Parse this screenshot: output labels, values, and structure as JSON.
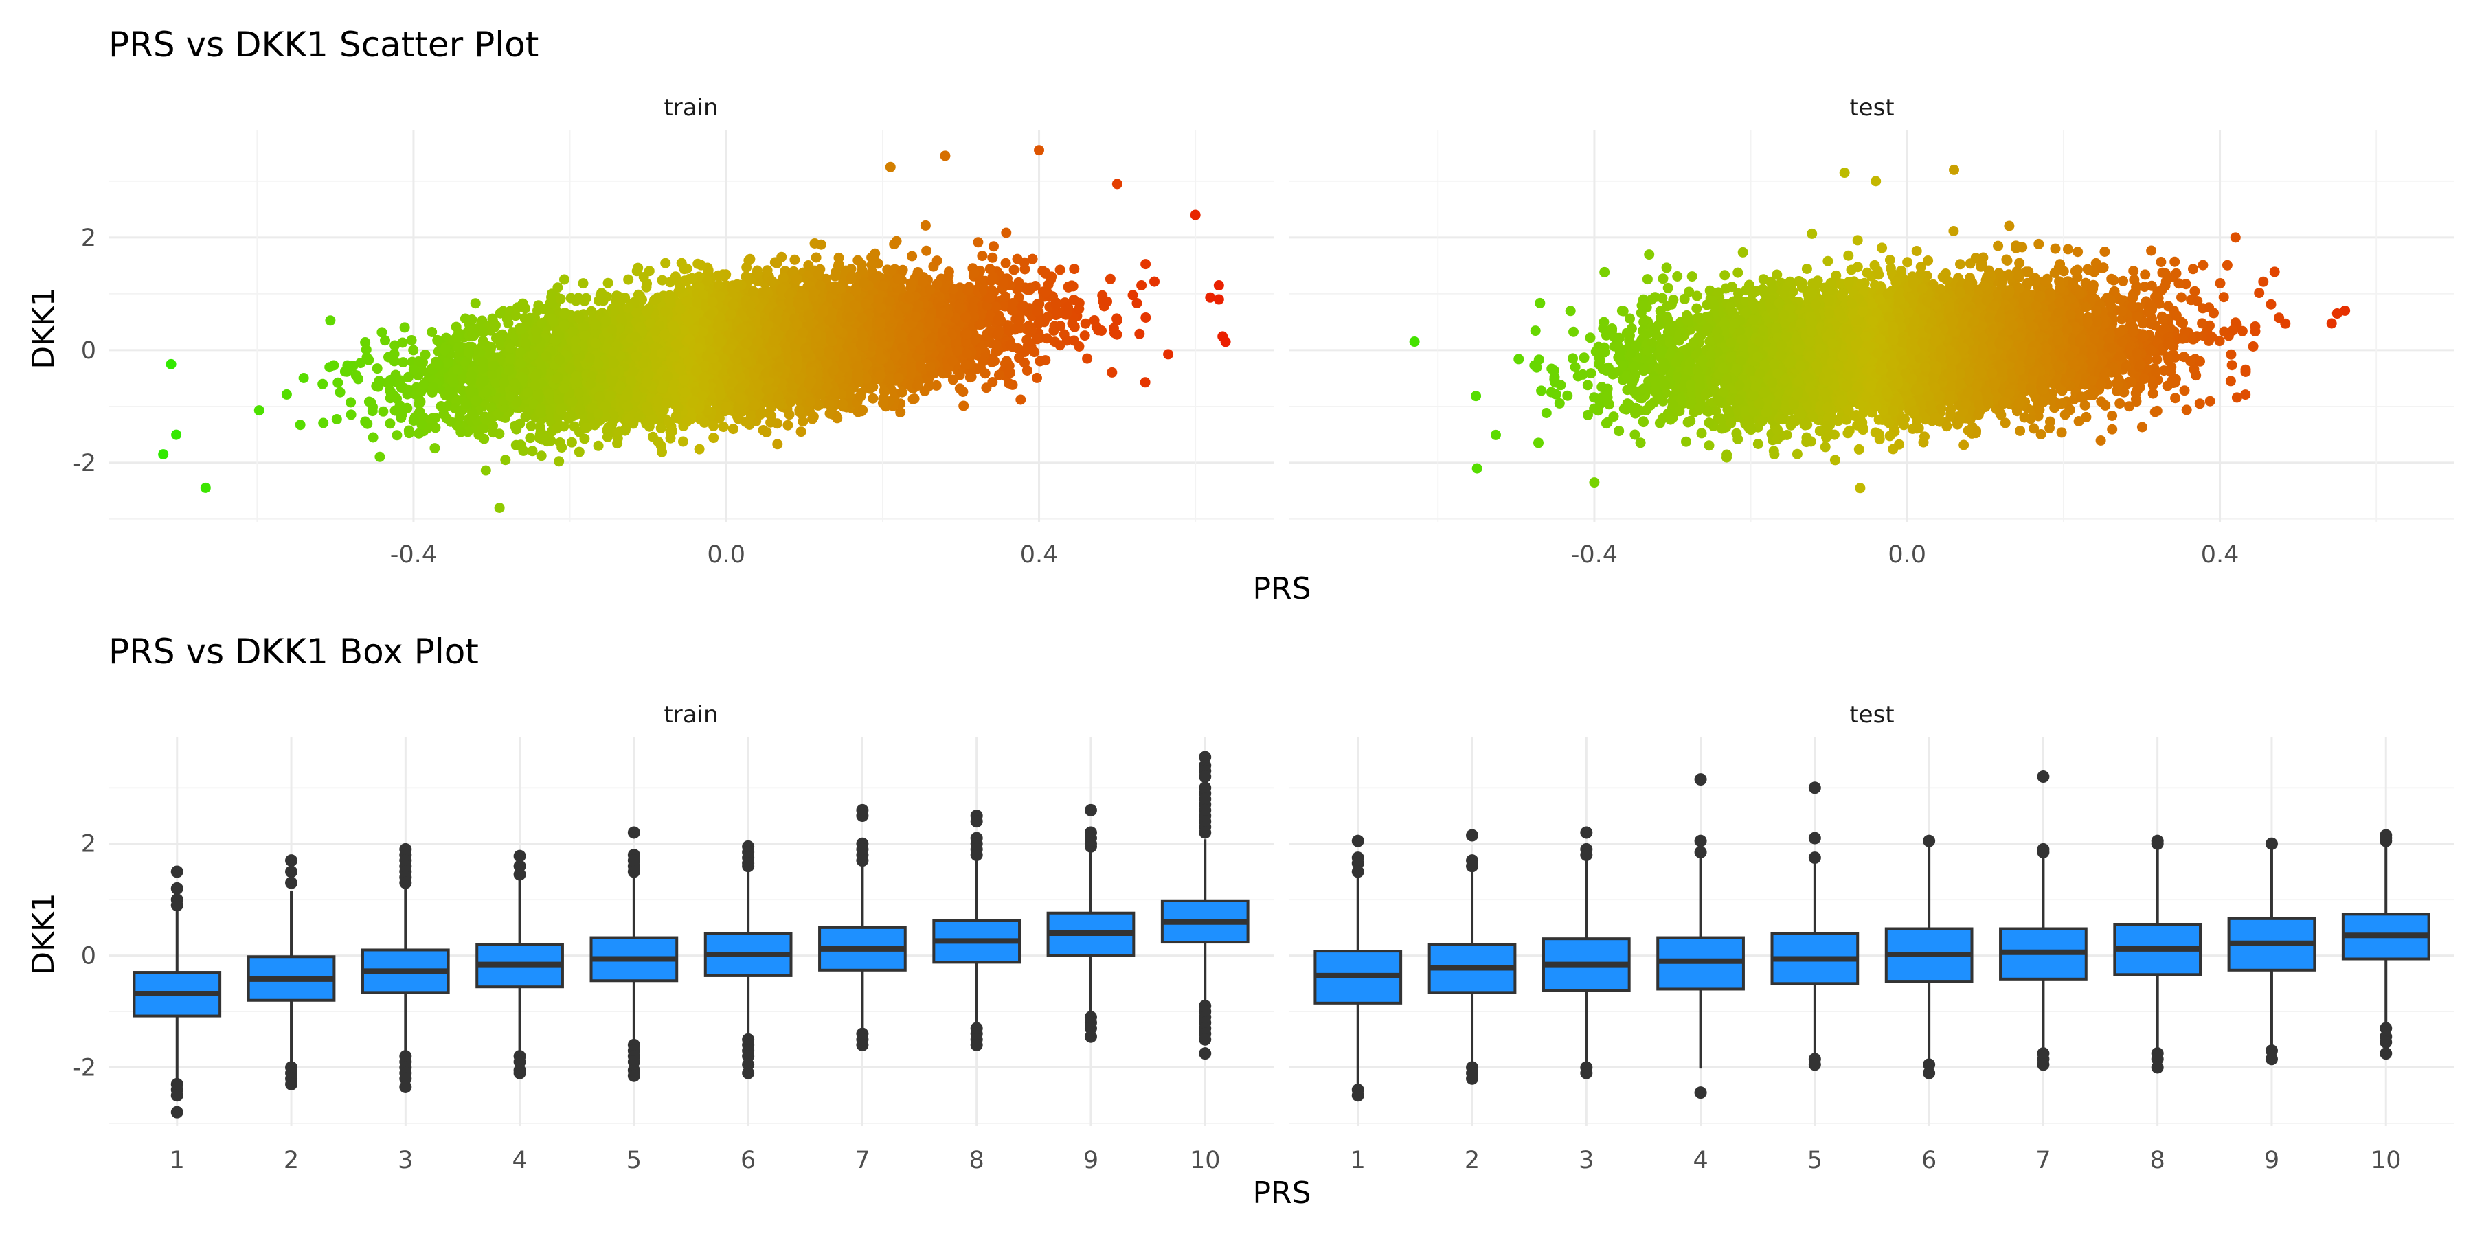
{
  "chart_data": [
    {
      "type": "scatter",
      "title": "PRS vs DKK1 Scatter Plot",
      "xlabel": "PRS",
      "ylabel": "DKK1",
      "facets": [
        "train",
        "test"
      ],
      "xlim": [
        -0.79,
        0.7
      ],
      "ylim": [
        -3.05,
        3.9
      ],
      "x_ticks": [
        -0.4,
        0.0,
        0.4
      ],
      "x_tick_labels": [
        "-0.4",
        "0.0",
        "0.4"
      ],
      "y_ticks": [
        -2,
        0,
        2
      ],
      "y_tick_labels": [
        "-2",
        "0",
        "2"
      ],
      "grid": true,
      "color_scale": {
        "low": "#22ee00",
        "mid": "#c4b800",
        "high": "#ee1100",
        "mapped_to": "PRS"
      },
      "approx_trend": {
        "train": {
          "slope": 2.7,
          "sd": 0.52,
          "x_center": 0.0,
          "x_sd": 0.17
        },
        "test": {
          "slope": 1.2,
          "sd": 0.55,
          "x_center": -0.02,
          "x_sd": 0.15
        }
      },
      "notable_points": {
        "train": [
          [
            0.4,
            3.55
          ],
          [
            0.28,
            3.45
          ],
          [
            0.21,
            3.25
          ],
          [
            0.63,
            1.15
          ],
          [
            0.63,
            0.9
          ],
          [
            -0.71,
            -0.25
          ],
          [
            -0.72,
            -1.85
          ],
          [
            -0.29,
            -2.8
          ],
          [
            0.6,
            2.4
          ],
          [
            0.5,
            2.95
          ]
        ],
        "test": [
          [
            -0.08,
            3.15
          ],
          [
            0.06,
            3.2
          ],
          [
            -0.04,
            3.0
          ],
          [
            0.56,
            0.7
          ],
          [
            0.55,
            0.65
          ],
          [
            -0.63,
            0.15
          ],
          [
            -0.55,
            -2.1
          ],
          [
            -0.4,
            -2.35
          ],
          [
            -0.06,
            -2.45
          ],
          [
            0.42,
            2.0
          ]
        ]
      }
    },
    {
      "type": "box",
      "title": "PRS vs DKK1 Box Plot",
      "xlabel": "PRS",
      "ylabel": "DKK1",
      "facets": [
        "train",
        "test"
      ],
      "categories": [
        "1",
        "2",
        "3",
        "4",
        "5",
        "6",
        "7",
        "8",
        "9",
        "10"
      ],
      "ylim": [
        -3.05,
        3.9
      ],
      "y_ticks": [
        -2,
        0,
        2
      ],
      "y_tick_labels": [
        "-2",
        "0",
        "2"
      ],
      "box_fill": "#1e90ff",
      "grid": true,
      "series": [
        {
          "facet": "train",
          "boxes": [
            {
              "q1": -1.08,
              "median": -0.68,
              "q3": -0.3,
              "whisker_low": -2.2,
              "whisker_high": 0.85,
              "outliers": [
                1.5,
                1.2,
                1.0,
                0.9,
                -2.3,
                -2.4,
                -2.5,
                -2.8
              ]
            },
            {
              "q1": -0.8,
              "median": -0.42,
              "q3": -0.02,
              "whisker_low": -1.9,
              "whisker_high": 1.15,
              "outliers": [
                1.7,
                1.5,
                1.3,
                -2.0,
                -2.1,
                -2.2,
                -2.3
              ]
            },
            {
              "q1": -0.66,
              "median": -0.28,
              "q3": 0.1,
              "whisker_low": -1.78,
              "whisker_high": 1.22,
              "outliers": [
                1.9,
                1.8,
                1.7,
                1.6,
                1.5,
                1.4,
                1.3,
                -1.8,
                -1.9,
                -2.0,
                -2.1,
                -2.2,
                -2.35
              ]
            },
            {
              "q1": -0.56,
              "median": -0.16,
              "q3": 0.2,
              "whisker_low": -1.72,
              "whisker_high": 1.35,
              "outliers": [
                1.78,
                1.6,
                1.45,
                -1.8,
                -1.9,
                -2.05,
                -2.1
              ]
            },
            {
              "q1": -0.45,
              "median": -0.06,
              "q3": 0.32,
              "whisker_low": -1.55,
              "whisker_high": 1.45,
              "outliers": [
                2.2,
                1.8,
                1.7,
                1.6,
                1.5,
                -1.6,
                -1.7,
                -1.8,
                -1.9,
                -2.05,
                -2.15
              ]
            },
            {
              "q1": -0.36,
              "median": 0.02,
              "q3": 0.4,
              "whisker_low": -1.48,
              "whisker_high": 1.5,
              "outliers": [
                1.95,
                1.85,
                1.75,
                1.65,
                1.6,
                -1.5,
                -1.6,
                -1.7,
                -1.8,
                -1.95,
                -2.1
              ]
            },
            {
              "q1": -0.26,
              "median": 0.12,
              "q3": 0.5,
              "whisker_low": -1.38,
              "whisker_high": 1.6,
              "outliers": [
                2.6,
                2.5,
                2.0,
                1.9,
                1.8,
                1.7,
                -1.4,
                -1.5,
                -1.6
              ]
            },
            {
              "q1": -0.12,
              "median": 0.26,
              "q3": 0.63,
              "whisker_low": -1.22,
              "whisker_high": 1.72,
              "outliers": [
                2.5,
                2.4,
                2.1,
                2.0,
                1.9,
                1.8,
                -1.3,
                -1.4,
                -1.5,
                -1.6
              ]
            },
            {
              "q1": 0.0,
              "median": 0.4,
              "q3": 0.76,
              "whisker_low": -1.05,
              "whisker_high": 1.85,
              "outliers": [
                2.6,
                2.2,
                2.1,
                2.0,
                1.95,
                -1.1,
                -1.2,
                -1.3,
                -1.45
              ]
            },
            {
              "q1": 0.24,
              "median": 0.6,
              "q3": 0.98,
              "whisker_low": -0.85,
              "whisker_high": 2.08,
              "outliers": [
                3.55,
                3.4,
                3.3,
                3.2,
                3.0,
                2.9,
                2.8,
                2.7,
                2.6,
                2.5,
                2.4,
                2.3,
                2.2,
                -0.9,
                -1.0,
                -1.1,
                -1.2,
                -1.3,
                -1.4,
                -1.5,
                -1.75
              ]
            }
          ]
        },
        {
          "facet": "test",
          "boxes": [
            {
              "q1": -0.85,
              "median": -0.36,
              "q3": 0.08,
              "whisker_low": -2.3,
              "whisker_high": 1.4,
              "outliers": [
                2.05,
                1.75,
                1.65,
                1.5,
                -2.4,
                -2.5
              ]
            },
            {
              "q1": -0.66,
              "median": -0.22,
              "q3": 0.2,
              "whisker_low": -1.95,
              "whisker_high": 1.52,
              "outliers": [
                2.15,
                1.7,
                1.6,
                -2.0,
                -2.1,
                -2.2
              ]
            },
            {
              "q1": -0.62,
              "median": -0.16,
              "q3": 0.3,
              "whisker_low": -1.95,
              "whisker_high": 1.72,
              "outliers": [
                2.2,
                1.9,
                1.8,
                -2.0,
                -2.1
              ]
            },
            {
              "q1": -0.6,
              "median": -0.1,
              "q3": 0.32,
              "whisker_low": -2.02,
              "whisker_high": 1.75,
              "outliers": [
                3.15,
                2.05,
                1.85,
                -2.45
              ]
            },
            {
              "q1": -0.5,
              "median": -0.06,
              "q3": 0.4,
              "whisker_low": -1.85,
              "whisker_high": 1.68,
              "outliers": [
                3.0,
                2.1,
                1.75,
                -1.85,
                -1.95
              ]
            },
            {
              "q1": -0.46,
              "median": 0.02,
              "q3": 0.48,
              "whisker_low": -1.88,
              "whisker_high": 1.95,
              "outliers": [
                2.05,
                -1.95,
                -2.1
              ]
            },
            {
              "q1": -0.42,
              "median": 0.06,
              "q3": 0.48,
              "whisker_low": -1.75,
              "whisker_high": 1.78,
              "outliers": [
                3.2,
                1.9,
                1.85,
                -1.75,
                -1.85,
                -1.95
              ]
            },
            {
              "q1": -0.34,
              "median": 0.12,
              "q3": 0.56,
              "whisker_low": -1.7,
              "whisker_high": 1.95,
              "outliers": [
                2.05,
                2.0,
                -1.75,
                -1.85,
                -2.0
              ]
            },
            {
              "q1": -0.26,
              "median": 0.22,
              "q3": 0.66,
              "whisker_low": -1.6,
              "whisker_high": 1.98,
              "outliers": [
                2.0,
                -1.7,
                -1.85
              ]
            },
            {
              "q1": -0.06,
              "median": 0.36,
              "q3": 0.74,
              "whisker_low": -1.2,
              "whisker_high": 2.0,
              "outliers": [
                2.15,
                2.1,
                2.05,
                -1.3,
                -1.45,
                -1.55,
                -1.75
              ]
            }
          ]
        }
      ]
    }
  ]
}
